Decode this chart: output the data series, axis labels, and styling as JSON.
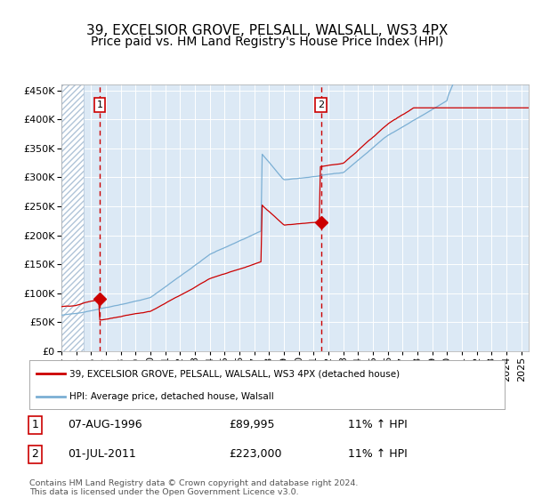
{
  "title": "39, EXCELSIOR GROVE, PELSALL, WALSALL, WS3 4PX",
  "subtitle": "Price paid vs. HM Land Registry's House Price Index (HPI)",
  "legend_label_red": "39, EXCELSIOR GROVE, PELSALL, WALSALL, WS3 4PX (detached house)",
  "legend_label_blue": "HPI: Average price, detached house, Walsall",
  "annotation1_date": "07-AUG-1996",
  "annotation1_price": "£89,995",
  "annotation1_hpi": "11% ↑ HPI",
  "annotation1_year": 1996.58,
  "annotation1_value": 89995,
  "annotation2_date": "01-JUL-2011",
  "annotation2_price": "£223,000",
  "annotation2_hpi": "11% ↑ HPI",
  "annotation2_year": 2011.5,
  "annotation2_value": 223000,
  "plot_bg_color": "#dce9f5",
  "red_line_color": "#cc0000",
  "blue_line_color": "#7bafd4",
  "ylim": [
    0,
    460000
  ],
  "xlim_start": 1994.0,
  "xlim_end": 2025.5,
  "footer_text": "Contains HM Land Registry data © Crown copyright and database right 2024.\nThis data is licensed under the Open Government Licence v3.0.",
  "title_fontsize": 11,
  "subtitle_fontsize": 10,
  "tick_fontsize": 8
}
